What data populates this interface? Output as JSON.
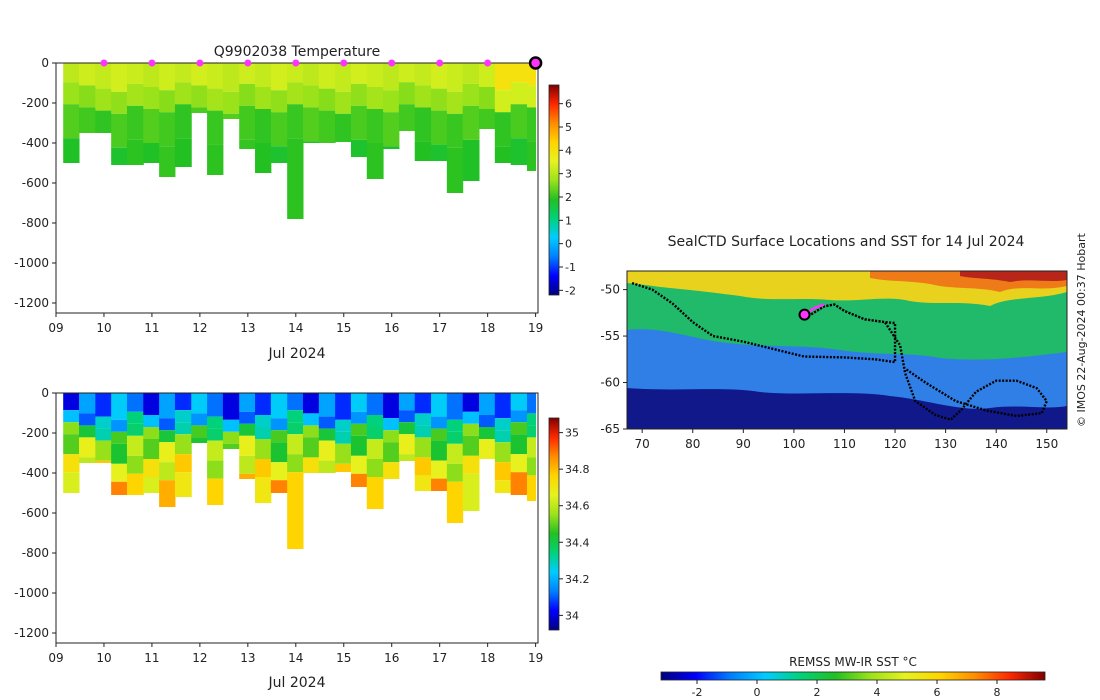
{
  "colors": {
    "ramp": [
      "#00007f",
      "#0000ff",
      "#007fff",
      "#00ccff",
      "#00d27a",
      "#22c022",
      "#9be21a",
      "#e6f21e",
      "#ffd400",
      "#ff8c00",
      "#ff2800",
      "#800000"
    ],
    "track": "#000000",
    "highlight": "#ff33ff",
    "ocean_map": {
      "deep": "#10188a",
      "cold": "#2f7fe6",
      "mid": "#21b96a",
      "warm": "#e8d21d",
      "hot": "#d44a16"
    }
  },
  "chart_data": [
    {
      "id": "temperature",
      "type": "heatmap",
      "title": "Q9902038  Temperature",
      "xlabel": "Jul 2024",
      "ylabel": "",
      "x_ticks": [
        "09",
        "10",
        "11",
        "12",
        "13",
        "14",
        "15",
        "16",
        "17",
        "18",
        "19"
      ],
      "xlim": [
        9,
        19.05
      ],
      "y_ticks": [
        "0",
        "-200",
        "-400",
        "-600",
        "-800",
        "-1000",
        "-1200"
      ],
      "ylim": [
        -1250,
        0
      ],
      "colorbar": {
        "ticks": [
          "-2",
          "-1",
          "0",
          "1",
          "2",
          "3",
          "4",
          "5",
          "6"
        ],
        "range": [
          -2.2,
          6.8
        ]
      },
      "profile_markers_x": [
        10,
        11,
        12,
        13,
        14,
        15,
        16,
        17,
        18
      ],
      "last_profile_x": 19,
      "profile_starts": [
        9.15,
        9.48,
        9.82,
        10.15,
        10.48,
        10.82,
        11.15,
        11.48,
        11.82,
        12.15,
        12.48,
        12.82,
        13.15,
        13.48,
        13.82,
        14.15,
        14.48,
        14.82,
        15.15,
        15.48,
        15.82,
        16.15,
        16.48,
        16.82,
        17.15,
        17.48,
        17.82,
        18.15,
        18.48,
        18.82
      ],
      "profile_depths": [
        500,
        350,
        350,
        510,
        510,
        500,
        570,
        520,
        250,
        560,
        280,
        430,
        550,
        500,
        780,
        400,
        400,
        395,
        470,
        580,
        430,
        340,
        490,
        490,
        650,
        590,
        330,
        500,
        510,
        540
      ],
      "temp_layers": [
        {
          "z": [
            0,
            120
          ],
          "v": 3.2
        },
        {
          "z": [
            120,
            230
          ],
          "v": 2.7
        },
        {
          "z": [
            230,
            400
          ],
          "v": 2.1
        },
        {
          "z": [
            400,
            800
          ],
          "v": 1.9
        }
      ],
      "warm_top_from_x": 18.1,
      "warm_top_value": 4.0
    },
    {
      "id": "salinity",
      "type": "heatmap",
      "title": "",
      "xlabel": "Jul 2024",
      "x_ticks": [
        "09",
        "10",
        "11",
        "12",
        "13",
        "14",
        "15",
        "16",
        "17",
        "18",
        "19"
      ],
      "xlim": [
        9,
        19.05
      ],
      "y_ticks": [
        "0",
        "-200",
        "-400",
        "-600",
        "-800",
        "-1000",
        "-1200"
      ],
      "ylim": [
        -1250,
        0
      ],
      "colorbar": {
        "ticks": [
          "34",
          "34.2",
          "34.4",
          "34.6",
          "34.8",
          "35"
        ],
        "range": [
          33.92,
          35.08
        ]
      },
      "sal_layers": [
        {
          "z": [
            0,
            110
          ],
          "v": 34.12
        },
        {
          "z": [
            110,
            170
          ],
          "v": 34.22
        },
        {
          "z": [
            170,
            230
          ],
          "v": 34.42
        },
        {
          "z": [
            230,
            330
          ],
          "v": 34.55
        },
        {
          "z": [
            330,
            420
          ],
          "v": 34.66
        },
        {
          "z": [
            420,
            800
          ],
          "v": 34.76
        }
      ]
    },
    {
      "id": "sst_map",
      "type": "heatmap",
      "title": "SealCTD Surface Locations and SST for 14 Jul 2024",
      "x_ticks": [
        "70",
        "80",
        "90",
        "100",
        "110",
        "120",
        "130",
        "140",
        "150"
      ],
      "xlim": [
        67,
        154
      ],
      "y_ticks": [
        "-50",
        "-55",
        "-60",
        "-65"
      ],
      "ylim": [
        -65,
        -48
      ],
      "colorbar_label": "REMSS MW-IR SST °C",
      "colorbar_ticks": [
        "-2",
        "0",
        "2",
        "4",
        "6",
        "8"
      ],
      "colorbar_range": [
        -3.2,
        9.6
      ],
      "track": [
        [
          68,
          -49.3
        ],
        [
          72,
          -50
        ],
        [
          76,
          -51.5
        ],
        [
          80,
          -53.5
        ],
        [
          84,
          -55
        ],
        [
          90,
          -55.6
        ],
        [
          96,
          -56.4
        ],
        [
          102,
          -57.2
        ],
        [
          110,
          -57.3
        ],
        [
          116,
          -57.5
        ],
        [
          120,
          -57.8
        ],
        [
          120,
          -53.6
        ],
        [
          118,
          -53.5
        ],
        [
          114,
          -53.2
        ],
        [
          110,
          -52.3
        ],
        [
          108,
          -51.6
        ],
        [
          106,
          -51.8
        ],
        [
          103,
          -52.8
        ],
        [
          106,
          -51.8
        ],
        [
          108,
          -51.6
        ],
        [
          110,
          -52.3
        ],
        [
          114,
          -53.2
        ],
        [
          118,
          -53.5
        ],
        [
          121,
          -56
        ],
        [
          122,
          -59
        ],
        [
          124,
          -62
        ],
        [
          128,
          -63.5
        ],
        [
          131,
          -64
        ],
        [
          133,
          -63
        ],
        [
          136,
          -61
        ],
        [
          140,
          -59.8
        ],
        [
          144,
          -59.8
        ],
        [
          148,
          -60.6
        ],
        [
          150,
          -62
        ],
        [
          149,
          -63.3
        ],
        [
          144,
          -63.6
        ],
        [
          138,
          -63
        ],
        [
          132,
          -62
        ],
        [
          126,
          -60
        ],
        [
          122,
          -58.5
        ]
      ],
      "current_position": [
        102.1,
        -52.7
      ],
      "recent_segment": [
        [
          102.1,
          -52.7
        ],
        [
          104,
          -52
        ],
        [
          106,
          -51.6
        ]
      ]
    }
  ],
  "credit": "© IMOS 22-Aug-2024 00:37 Hobart"
}
